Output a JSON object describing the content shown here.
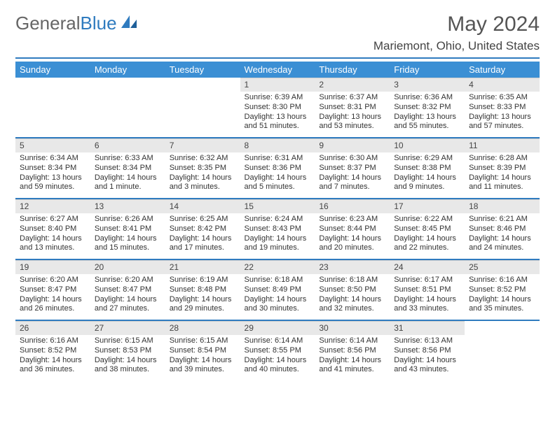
{
  "logo": {
    "part1": "General",
    "part2": "Blue"
  },
  "title": "May 2024",
  "subtitle": "Mariemont, Ohio, United States",
  "header_row": {
    "bg_color": "#3b8fd4",
    "text_color": "#ffffff",
    "days": [
      "Sunday",
      "Monday",
      "Tuesday",
      "Wednesday",
      "Thursday",
      "Friday",
      "Saturday"
    ]
  },
  "accent_color": "#2f7bbf",
  "daynum_bg": "#e8e8e8",
  "font_sizes": {
    "title": 30,
    "subtitle": 17,
    "day_header": 13,
    "daynum": 12,
    "body": 11
  },
  "weeks": [
    [
      {
        "n": "",
        "lines": []
      },
      {
        "n": "",
        "lines": []
      },
      {
        "n": "",
        "lines": []
      },
      {
        "n": "1",
        "lines": [
          "Sunrise: 6:39 AM",
          "Sunset: 8:30 PM",
          "Daylight: 13 hours and 51 minutes."
        ]
      },
      {
        "n": "2",
        "lines": [
          "Sunrise: 6:37 AM",
          "Sunset: 8:31 PM",
          "Daylight: 13 hours and 53 minutes."
        ]
      },
      {
        "n": "3",
        "lines": [
          "Sunrise: 6:36 AM",
          "Sunset: 8:32 PM",
          "Daylight: 13 hours and 55 minutes."
        ]
      },
      {
        "n": "4",
        "lines": [
          "Sunrise: 6:35 AM",
          "Sunset: 8:33 PM",
          "Daylight: 13 hours and 57 minutes."
        ]
      }
    ],
    [
      {
        "n": "5",
        "lines": [
          "Sunrise: 6:34 AM",
          "Sunset: 8:34 PM",
          "Daylight: 13 hours and 59 minutes."
        ]
      },
      {
        "n": "6",
        "lines": [
          "Sunrise: 6:33 AM",
          "Sunset: 8:34 PM",
          "Daylight: 14 hours and 1 minute."
        ]
      },
      {
        "n": "7",
        "lines": [
          "Sunrise: 6:32 AM",
          "Sunset: 8:35 PM",
          "Daylight: 14 hours and 3 minutes."
        ]
      },
      {
        "n": "8",
        "lines": [
          "Sunrise: 6:31 AM",
          "Sunset: 8:36 PM",
          "Daylight: 14 hours and 5 minutes."
        ]
      },
      {
        "n": "9",
        "lines": [
          "Sunrise: 6:30 AM",
          "Sunset: 8:37 PM",
          "Daylight: 14 hours and 7 minutes."
        ]
      },
      {
        "n": "10",
        "lines": [
          "Sunrise: 6:29 AM",
          "Sunset: 8:38 PM",
          "Daylight: 14 hours and 9 minutes."
        ]
      },
      {
        "n": "11",
        "lines": [
          "Sunrise: 6:28 AM",
          "Sunset: 8:39 PM",
          "Daylight: 14 hours and 11 minutes."
        ]
      }
    ],
    [
      {
        "n": "12",
        "lines": [
          "Sunrise: 6:27 AM",
          "Sunset: 8:40 PM",
          "Daylight: 14 hours and 13 minutes."
        ]
      },
      {
        "n": "13",
        "lines": [
          "Sunrise: 6:26 AM",
          "Sunset: 8:41 PM",
          "Daylight: 14 hours and 15 minutes."
        ]
      },
      {
        "n": "14",
        "lines": [
          "Sunrise: 6:25 AM",
          "Sunset: 8:42 PM",
          "Daylight: 14 hours and 17 minutes."
        ]
      },
      {
        "n": "15",
        "lines": [
          "Sunrise: 6:24 AM",
          "Sunset: 8:43 PM",
          "Daylight: 14 hours and 19 minutes."
        ]
      },
      {
        "n": "16",
        "lines": [
          "Sunrise: 6:23 AM",
          "Sunset: 8:44 PM",
          "Daylight: 14 hours and 20 minutes."
        ]
      },
      {
        "n": "17",
        "lines": [
          "Sunrise: 6:22 AM",
          "Sunset: 8:45 PM",
          "Daylight: 14 hours and 22 minutes."
        ]
      },
      {
        "n": "18",
        "lines": [
          "Sunrise: 6:21 AM",
          "Sunset: 8:46 PM",
          "Daylight: 14 hours and 24 minutes."
        ]
      }
    ],
    [
      {
        "n": "19",
        "lines": [
          "Sunrise: 6:20 AM",
          "Sunset: 8:47 PM",
          "Daylight: 14 hours and 26 minutes."
        ]
      },
      {
        "n": "20",
        "lines": [
          "Sunrise: 6:20 AM",
          "Sunset: 8:47 PM",
          "Daylight: 14 hours and 27 minutes."
        ]
      },
      {
        "n": "21",
        "lines": [
          "Sunrise: 6:19 AM",
          "Sunset: 8:48 PM",
          "Daylight: 14 hours and 29 minutes."
        ]
      },
      {
        "n": "22",
        "lines": [
          "Sunrise: 6:18 AM",
          "Sunset: 8:49 PM",
          "Daylight: 14 hours and 30 minutes."
        ]
      },
      {
        "n": "23",
        "lines": [
          "Sunrise: 6:18 AM",
          "Sunset: 8:50 PM",
          "Daylight: 14 hours and 32 minutes."
        ]
      },
      {
        "n": "24",
        "lines": [
          "Sunrise: 6:17 AM",
          "Sunset: 8:51 PM",
          "Daylight: 14 hours and 33 minutes."
        ]
      },
      {
        "n": "25",
        "lines": [
          "Sunrise: 6:16 AM",
          "Sunset: 8:52 PM",
          "Daylight: 14 hours and 35 minutes."
        ]
      }
    ],
    [
      {
        "n": "26",
        "lines": [
          "Sunrise: 6:16 AM",
          "Sunset: 8:52 PM",
          "Daylight: 14 hours and 36 minutes."
        ]
      },
      {
        "n": "27",
        "lines": [
          "Sunrise: 6:15 AM",
          "Sunset: 8:53 PM",
          "Daylight: 14 hours and 38 minutes."
        ]
      },
      {
        "n": "28",
        "lines": [
          "Sunrise: 6:15 AM",
          "Sunset: 8:54 PM",
          "Daylight: 14 hours and 39 minutes."
        ]
      },
      {
        "n": "29",
        "lines": [
          "Sunrise: 6:14 AM",
          "Sunset: 8:55 PM",
          "Daylight: 14 hours and 40 minutes."
        ]
      },
      {
        "n": "30",
        "lines": [
          "Sunrise: 6:14 AM",
          "Sunset: 8:56 PM",
          "Daylight: 14 hours and 41 minutes."
        ]
      },
      {
        "n": "31",
        "lines": [
          "Sunrise: 6:13 AM",
          "Sunset: 8:56 PM",
          "Daylight: 14 hours and 43 minutes."
        ]
      },
      {
        "n": "",
        "lines": []
      }
    ]
  ]
}
